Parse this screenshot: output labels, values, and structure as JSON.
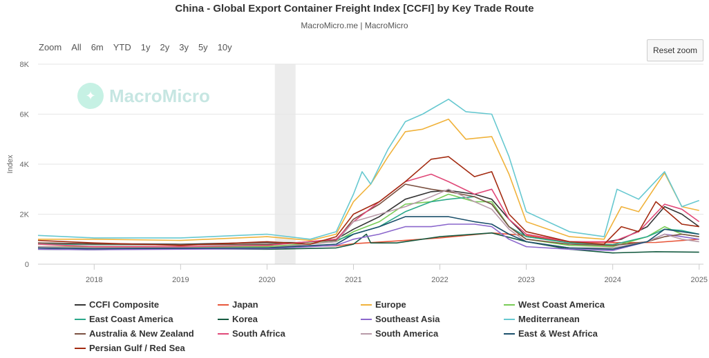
{
  "header": {
    "title": "China - Global Export Container Freight Index [CCFI] by Key Trade Route",
    "subtitle": "MacroMicro.me | MacroMicro"
  },
  "range_selector": {
    "zoom_label": "Zoom",
    "buttons": [
      "All",
      "6m",
      "YTD",
      "1y",
      "2y",
      "3y",
      "5y",
      "10y"
    ]
  },
  "reset_zoom_label": "Reset zoom",
  "watermark": {
    "text": "MacroMicro",
    "icon": "macromicro-logo-icon"
  },
  "chart_data": {
    "type": "line",
    "ylabel": "Index",
    "ylim": [
      0,
      8000
    ],
    "yticks": [
      0,
      2000,
      4000,
      6000,
      8000
    ],
    "ytick_labels": [
      "0",
      "2K",
      "4K",
      "6K",
      "8K"
    ],
    "xlim": [
      2017.35,
      2025.05
    ],
    "xtick_labels": [
      "2018",
      "2019",
      "2020",
      "2021",
      "2022",
      "2023",
      "2024",
      "2025"
    ],
    "xticks": [
      2018,
      2019,
      2020,
      2021,
      2022,
      2023,
      2024,
      2025
    ],
    "shaded_band": [
      2020.09,
      2020.33
    ],
    "grid": true,
    "legend_position": "bottom",
    "series": [
      {
        "name": "CCFI Composite",
        "color": "#333333",
        "points": [
          [
            2017.35,
            850
          ],
          [
            2018,
            820
          ],
          [
            2019,
            800
          ],
          [
            2020,
            870
          ],
          [
            2020.4,
            860
          ],
          [
            2020.8,
            1000
          ],
          [
            2021,
            1400
          ],
          [
            2021.3,
            1900
          ],
          [
            2021.6,
            2600
          ],
          [
            2021.9,
            2900
          ],
          [
            2022.1,
            2950
          ],
          [
            2022.4,
            2800
          ],
          [
            2022.6,
            2600
          ],
          [
            2022.8,
            1800
          ],
          [
            2023,
            1100
          ],
          [
            2023.5,
            900
          ],
          [
            2023.9,
            880
          ],
          [
            2024.1,
            1000
          ],
          [
            2024.4,
            1500
          ],
          [
            2024.6,
            2300
          ],
          [
            2024.8,
            2000
          ],
          [
            2025,
            1500
          ]
        ]
      },
      {
        "name": "Japan",
        "color": "#e8563a",
        "points": [
          [
            2017.35,
            700
          ],
          [
            2018,
            700
          ],
          [
            2019,
            700
          ],
          [
            2020,
            720
          ],
          [
            2020.8,
            730
          ],
          [
            2021,
            820
          ],
          [
            2021.5,
            930
          ],
          [
            2022,
            1050
          ],
          [
            2022.6,
            1250
          ],
          [
            2023,
            1150
          ],
          [
            2023.5,
            900
          ],
          [
            2024,
            860
          ],
          [
            2024.5,
            870
          ],
          [
            2025,
            1000
          ]
        ]
      },
      {
        "name": "Europe",
        "color": "#f0b23a",
        "points": [
          [
            2017.35,
            1000
          ],
          [
            2018,
            1000
          ],
          [
            2019,
            950
          ],
          [
            2020,
            1100
          ],
          [
            2020.5,
            950
          ],
          [
            2020.8,
            1200
          ],
          [
            2021,
            2500
          ],
          [
            2021.2,
            3200
          ],
          [
            2021.4,
            4300
          ],
          [
            2021.6,
            5300
          ],
          [
            2021.8,
            5400
          ],
          [
            2022.1,
            5800
          ],
          [
            2022.3,
            5000
          ],
          [
            2022.6,
            5100
          ],
          [
            2022.8,
            3600
          ],
          [
            2023,
            1700
          ],
          [
            2023.5,
            1100
          ],
          [
            2023.9,
            1000
          ],
          [
            2024.1,
            2300
          ],
          [
            2024.3,
            2100
          ],
          [
            2024.6,
            3650
          ],
          [
            2024.8,
            2300
          ],
          [
            2025,
            2150
          ]
        ]
      },
      {
        "name": "West Coast America",
        "color": "#77cc55",
        "points": [
          [
            2017.35,
            700
          ],
          [
            2018,
            680
          ],
          [
            2019,
            700
          ],
          [
            2020,
            700
          ],
          [
            2020.8,
            900
          ],
          [
            2021,
            1300
          ],
          [
            2021.3,
            1700
          ],
          [
            2021.6,
            2400
          ],
          [
            2021.9,
            2500
          ],
          [
            2022.1,
            2800
          ],
          [
            2022.4,
            2500
          ],
          [
            2022.6,
            2500
          ],
          [
            2022.8,
            1500
          ],
          [
            2023,
            1000
          ],
          [
            2023.5,
            750
          ],
          [
            2024,
            700
          ],
          [
            2024.4,
            1100
          ],
          [
            2024.6,
            1500
          ],
          [
            2024.8,
            1200
          ],
          [
            2025,
            1100
          ]
        ]
      },
      {
        "name": "East Coast America",
        "color": "#2aa88a",
        "points": [
          [
            2017.35,
            800
          ],
          [
            2018,
            780
          ],
          [
            2019,
            780
          ],
          [
            2020,
            790
          ],
          [
            2020.8,
            950
          ],
          [
            2021,
            1200
          ],
          [
            2021.3,
            1500
          ],
          [
            2021.6,
            2100
          ],
          [
            2021.9,
            2500
          ],
          [
            2022.1,
            2600
          ],
          [
            2022.4,
            2700
          ],
          [
            2022.6,
            2400
          ],
          [
            2022.8,
            1500
          ],
          [
            2023,
            1100
          ],
          [
            2023.5,
            850
          ],
          [
            2024,
            780
          ],
          [
            2024.4,
            1100
          ],
          [
            2024.6,
            1400
          ],
          [
            2024.8,
            1350
          ],
          [
            2025,
            1200
          ]
        ]
      },
      {
        "name": "Korea",
        "color": "#145a40",
        "points": [
          [
            2017.35,
            600
          ],
          [
            2018,
            580
          ],
          [
            2019,
            620
          ],
          [
            2020,
            600
          ],
          [
            2020.8,
            650
          ],
          [
            2021,
            800
          ],
          [
            2021.15,
            1200
          ],
          [
            2021.2,
            850
          ],
          [
            2021.5,
            850
          ],
          [
            2022,
            1100
          ],
          [
            2022.6,
            1250
          ],
          [
            2023,
            900
          ],
          [
            2023.5,
            600
          ],
          [
            2024,
            450
          ],
          [
            2024.5,
            500
          ],
          [
            2025,
            480
          ]
        ]
      },
      {
        "name": "Southeast Asia",
        "color": "#8a66cc",
        "points": [
          [
            2017.35,
            600
          ],
          [
            2018,
            580
          ],
          [
            2019,
            600
          ],
          [
            2020,
            620
          ],
          [
            2020.8,
            750
          ],
          [
            2021,
            1000
          ],
          [
            2021.3,
            1200
          ],
          [
            2021.6,
            1500
          ],
          [
            2021.9,
            1500
          ],
          [
            2022.1,
            1600
          ],
          [
            2022.4,
            1600
          ],
          [
            2022.6,
            1500
          ],
          [
            2022.8,
            1000
          ],
          [
            2023,
            700
          ],
          [
            2023.5,
            600
          ],
          [
            2024,
            550
          ],
          [
            2024.4,
            900
          ],
          [
            2024.6,
            1200
          ],
          [
            2024.8,
            1100
          ],
          [
            2025,
            1000
          ]
        ]
      },
      {
        "name": "Mediterranean",
        "color": "#66c8d0",
        "points": [
          [
            2017.35,
            1150
          ],
          [
            2018,
            1050
          ],
          [
            2019,
            1050
          ],
          [
            2020,
            1200
          ],
          [
            2020.5,
            1000
          ],
          [
            2020.8,
            1300
          ],
          [
            2021,
            2800
          ],
          [
            2021.1,
            3700
          ],
          [
            2021.2,
            3200
          ],
          [
            2021.4,
            4600
          ],
          [
            2021.6,
            5700
          ],
          [
            2021.8,
            6000
          ],
          [
            2022.1,
            6600
          ],
          [
            2022.3,
            6100
          ],
          [
            2022.6,
            6000
          ],
          [
            2022.8,
            4300
          ],
          [
            2023,
            2100
          ],
          [
            2023.5,
            1300
          ],
          [
            2023.9,
            1100
          ],
          [
            2024.05,
            3000
          ],
          [
            2024.3,
            2600
          ],
          [
            2024.6,
            3700
          ],
          [
            2024.8,
            2300
          ],
          [
            2025,
            2550
          ]
        ]
      },
      {
        "name": "Australia & New Zealand",
        "color": "#7a5040",
        "points": [
          [
            2017.35,
            850
          ],
          [
            2018,
            800
          ],
          [
            2019,
            780
          ],
          [
            2020,
            800
          ],
          [
            2020.8,
            950
          ],
          [
            2021,
            1800
          ],
          [
            2021.3,
            2400
          ],
          [
            2021.6,
            3200
          ],
          [
            2021.9,
            3000
          ],
          [
            2022.1,
            2900
          ],
          [
            2022.4,
            2700
          ],
          [
            2022.6,
            2400
          ],
          [
            2022.8,
            1500
          ],
          [
            2023,
            1000
          ],
          [
            2023.5,
            800
          ],
          [
            2024,
            750
          ],
          [
            2024.4,
            900
          ],
          [
            2024.6,
            1100
          ],
          [
            2024.8,
            1200
          ],
          [
            2025,
            1100
          ]
        ]
      },
      {
        "name": "South Africa",
        "color": "#e04878",
        "points": [
          [
            2017.35,
            800
          ],
          [
            2018,
            700
          ],
          [
            2019,
            700
          ],
          [
            2020,
            750
          ],
          [
            2020.8,
            1000
          ],
          [
            2021,
            1700
          ],
          [
            2021.3,
            2500
          ],
          [
            2021.6,
            3300
          ],
          [
            2021.9,
            3600
          ],
          [
            2022.1,
            3300
          ],
          [
            2022.4,
            2800
          ],
          [
            2022.6,
            3000
          ],
          [
            2022.8,
            1800
          ],
          [
            2023,
            1200
          ],
          [
            2023.5,
            900
          ],
          [
            2024,
            900
          ],
          [
            2024.3,
            1300
          ],
          [
            2024.6,
            2400
          ],
          [
            2024.8,
            2200
          ],
          [
            2025,
            1700
          ]
        ]
      },
      {
        "name": "South America",
        "color": "#b89aa8",
        "points": [
          [
            2017.35,
            700
          ],
          [
            2018,
            650
          ],
          [
            2019,
            650
          ],
          [
            2020,
            650
          ],
          [
            2020.8,
            900
          ],
          [
            2021,
            1700
          ],
          [
            2021.3,
            2000
          ],
          [
            2021.6,
            2300
          ],
          [
            2021.9,
            2700
          ],
          [
            2022.1,
            3000
          ],
          [
            2022.4,
            2500
          ],
          [
            2022.6,
            2200
          ],
          [
            2022.8,
            1400
          ],
          [
            2023,
            900
          ],
          [
            2023.5,
            650
          ],
          [
            2024,
            650
          ],
          [
            2024.4,
            900
          ],
          [
            2024.6,
            1200
          ],
          [
            2024.8,
            1000
          ],
          [
            2025,
            900
          ]
        ]
      },
      {
        "name": "East & West Africa",
        "color": "#1a4f6a",
        "points": [
          [
            2017.35,
            650
          ],
          [
            2018,
            620
          ],
          [
            2019,
            640
          ],
          [
            2020,
            650
          ],
          [
            2020.8,
            800
          ],
          [
            2021,
            1200
          ],
          [
            2021.3,
            1500
          ],
          [
            2021.6,
            1900
          ],
          [
            2021.9,
            1900
          ],
          [
            2022.1,
            1900
          ],
          [
            2022.4,
            1700
          ],
          [
            2022.6,
            1600
          ],
          [
            2022.8,
            1200
          ],
          [
            2023,
            900
          ],
          [
            2023.5,
            650
          ],
          [
            2024,
            600
          ],
          [
            2024.4,
            900
          ],
          [
            2024.6,
            1400
          ],
          [
            2024.8,
            1300
          ],
          [
            2025,
            1200
          ]
        ]
      },
      {
        "name": "Persian Gulf / Red Sea",
        "color": "#a32a10",
        "points": [
          [
            2017.35,
            950
          ],
          [
            2018,
            850
          ],
          [
            2019,
            750
          ],
          [
            2020,
            900
          ],
          [
            2020.5,
            800
          ],
          [
            2020.8,
            1100
          ],
          [
            2021,
            2000
          ],
          [
            2021.3,
            2500
          ],
          [
            2021.6,
            3300
          ],
          [
            2021.9,
            4200
          ],
          [
            2022.1,
            4300
          ],
          [
            2022.4,
            3500
          ],
          [
            2022.6,
            3700
          ],
          [
            2022.8,
            2000
          ],
          [
            2023,
            1300
          ],
          [
            2023.5,
            900
          ],
          [
            2023.9,
            800
          ],
          [
            2024.1,
            1500
          ],
          [
            2024.3,
            1300
          ],
          [
            2024.5,
            2500
          ],
          [
            2024.8,
            1600
          ],
          [
            2025,
            1500
          ]
        ]
      }
    ]
  }
}
